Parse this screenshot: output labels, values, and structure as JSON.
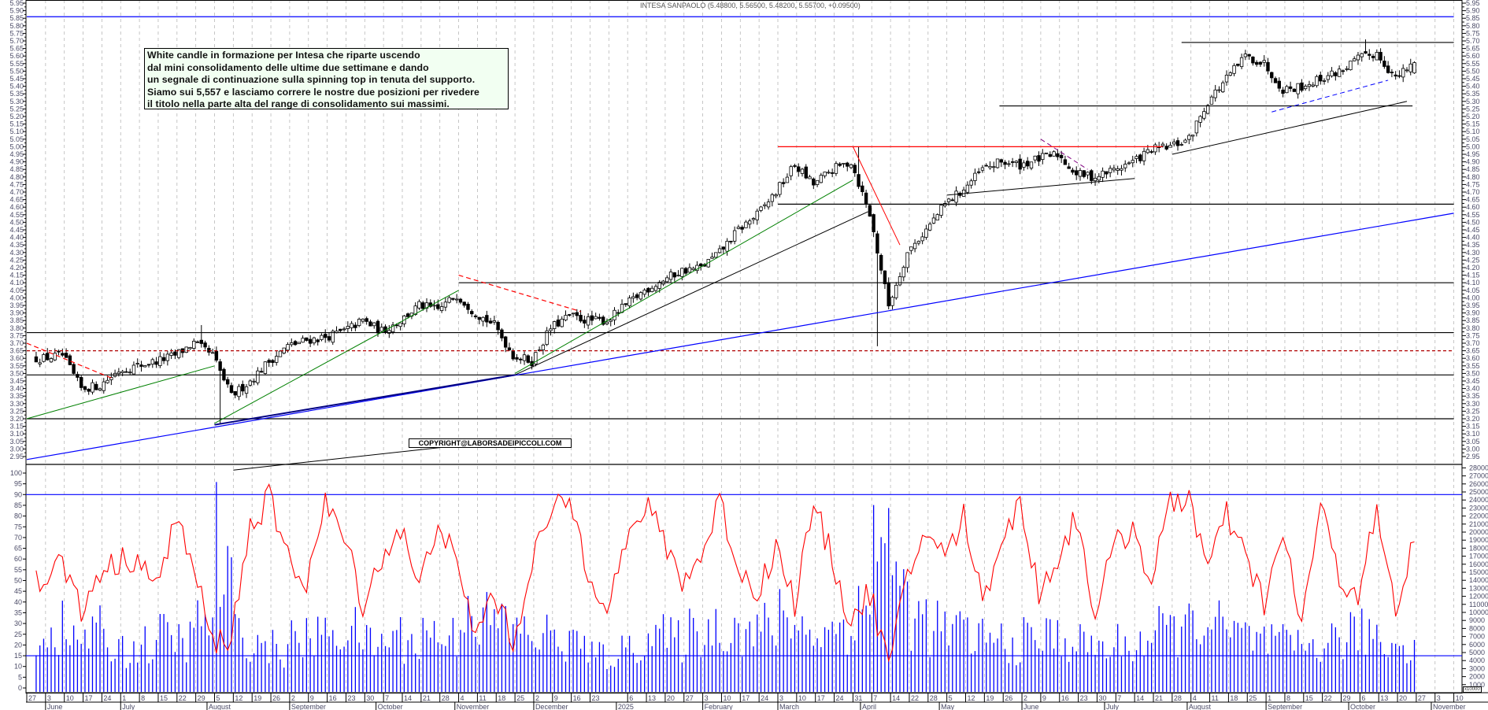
{
  "chart_data": {
    "type": "candlestick",
    "title": "INTESA SANPAOLO (5.48800, 5.56500, 5.48200, 5.55700, +0.09500)",
    "last_candle": {
      "open": 5.488,
      "high": 5.565,
      "low": 5.482,
      "close": 5.557,
      "change": 0.095
    },
    "price_axis": {
      "min": 2.95,
      "max": 5.95,
      "step": 0.05
    },
    "osc_axis": {
      "min": 0,
      "max": 100,
      "step": 5
    },
    "volume_axis": {
      "min": 1000,
      "max": 28000,
      "step": 1000,
      "multiplier_label": "x10000"
    },
    "weekly_close": [
      3.6,
      3.62,
      3.4,
      3.42,
      3.52,
      3.55,
      3.58,
      3.62,
      3.7,
      3.62,
      3.35,
      3.45,
      3.58,
      3.68,
      3.72,
      3.74,
      3.78,
      3.85,
      3.78,
      3.85,
      3.95,
      3.92,
      4.02,
      3.9,
      3.82,
      3.62,
      3.58,
      3.8,
      3.88,
      3.85,
      3.85,
      3.95,
      4.05,
      4.12,
      4.18,
      4.2,
      4.3,
      4.45,
      4.55,
      4.7,
      4.88,
      4.75,
      4.85,
      4.9,
      4.55,
      3.95,
      4.3,
      4.45,
      4.62,
      4.72,
      4.85,
      4.9,
      4.88,
      4.92,
      4.95,
      4.82,
      4.8,
      4.85,
      4.9,
      4.98,
      5.0,
      5.05,
      5.3,
      5.45,
      5.6,
      5.55,
      5.38,
      5.4,
      5.45,
      5.5,
      5.58,
      5.62,
      5.45,
      5.557
    ],
    "price_spikes": [
      {
        "week": 10,
        "low": 3.17
      },
      {
        "week": 9,
        "high": 3.82
      },
      {
        "week": 45,
        "low": 3.68
      },
      {
        "week": 44,
        "high": 5.0
      },
      {
        "week": 71,
        "high": 5.71
      }
    ],
    "oscillator_weekly": [
      50,
      60,
      35,
      55,
      58,
      62,
      45,
      80,
      55,
      20,
      25,
      75,
      88,
      60,
      50,
      85,
      70,
      40,
      60,
      75,
      45,
      80,
      55,
      25,
      45,
      20,
      60,
      80,
      88,
      55,
      40,
      65,
      85,
      70,
      50,
      60,
      88,
      55,
      45,
      65,
      40,
      85,
      60,
      30,
      45,
      10,
      50,
      75,
      60,
      80,
      40,
      70,
      85,
      45,
      60,
      80,
      35,
      65,
      75,
      50,
      85,
      90,
      55,
      80,
      60,
      40,
      70,
      30,
      85,
      50,
      45,
      80,
      35,
      68
    ],
    "volume_weekly": [
      7000,
      8000,
      6500,
      7500,
      6000,
      5500,
      6000,
      7000,
      6500,
      9000,
      14000,
      7000,
      6000,
      5500,
      6500,
      7000,
      8000,
      7500,
      6000,
      7000,
      6500,
      7500,
      7000,
      11000,
      9000,
      8500,
      7500,
      7000,
      6500,
      6000,
      4500,
      5000,
      6500,
      7000,
      6500,
      7500,
      8000,
      8500,
      7500,
      8000,
      9500,
      8000,
      7500,
      8500,
      10000,
      20000,
      13000,
      9000,
      8000,
      7500,
      7000,
      6500,
      6000,
      6500,
      7000,
      6500,
      6000,
      5500,
      6000,
      6500,
      7500,
      8000,
      9500,
      8000,
      7000,
      6500,
      6000,
      5500,
      6000,
      6500,
      7000,
      7500,
      6000,
      6500
    ],
    "horizontal_lines": [
      {
        "price": 5.86,
        "from_week": 0,
        "to_week": 76,
        "color": "#0000ff",
        "dash": false
      },
      {
        "price": 5.69,
        "from_week": 61.5,
        "to_week": 76,
        "color": "#000000",
        "dash": false
      },
      {
        "price": 5.27,
        "from_week": 51.8,
        "to_week": 73.8,
        "color": "#000000",
        "dash": false
      },
      {
        "price": 5.0,
        "from_week": 40,
        "to_week": 60.5,
        "color": "#ff0000",
        "dash": false
      },
      {
        "price": 4.62,
        "from_week": 40,
        "to_week": 76,
        "color": "#000000",
        "dash": false
      },
      {
        "price": 4.1,
        "from_week": 23,
        "to_week": 76,
        "color": "#000000",
        "dash": false
      },
      {
        "price": 3.77,
        "from_week": 0,
        "to_week": 76,
        "color": "#000000",
        "dash": false
      },
      {
        "price": 3.65,
        "from_week": 0,
        "to_week": 76,
        "color": "#b00000",
        "dash": true
      },
      {
        "price": 3.49,
        "from_week": 0,
        "to_week": 76,
        "color": "#000000",
        "dash": false
      },
      {
        "price": 3.2,
        "from_week": 0,
        "to_week": 76,
        "color": "#000000",
        "dash": false
      }
    ],
    "trendlines": [
      {
        "p1": [
          0,
          2.93
        ],
        "p2": [
          76,
          4.56
        ],
        "color": "#0000ff",
        "dash": false,
        "width": 1.2
      },
      {
        "p1": [
          10,
          3.16
        ],
        "p2": [
          26,
          3.49
        ],
        "color": "#000080",
        "dash": false,
        "width": 2
      },
      {
        "p1": [
          26,
          3.49
        ],
        "p2": [
          44.8,
          4.57
        ],
        "color": "#000000",
        "dash": false,
        "width": 1
      },
      {
        "p1": [
          0,
          3.2
        ],
        "p2": [
          10,
          3.55
        ],
        "color": "#008000",
        "dash": false,
        "width": 1
      },
      {
        "p1": [
          10,
          3.17
        ],
        "p2": [
          23,
          4.05
        ],
        "color": "#008000",
        "dash": false,
        "width": 1
      },
      {
        "p1": [
          26,
          3.5
        ],
        "p2": [
          44,
          4.78
        ],
        "color": "#008000",
        "dash": false,
        "width": 1
      },
      {
        "p1": [
          0,
          3.7
        ],
        "p2": [
          4.5,
          3.47
        ],
        "color": "#ff0000",
        "dash": true,
        "width": 1.2
      },
      {
        "p1": [
          23,
          4.15
        ],
        "p2": [
          29.5,
          3.91
        ],
        "color": "#ff0000",
        "dash": true,
        "width": 1.2
      },
      {
        "p1": [
          44,
          5.0
        ],
        "p2": [
          46.5,
          4.35
        ],
        "color": "#ff0000",
        "dash": false,
        "width": 1
      },
      {
        "p1": [
          49,
          4.68
        ],
        "p2": [
          59,
          4.79
        ],
        "color": "#000000",
        "dash": false,
        "width": 1
      },
      {
        "p1": [
          61,
          4.95
        ],
        "p2": [
          73.5,
          5.3
        ],
        "color": "#000000",
        "dash": false,
        "width": 1
      },
      {
        "p1": [
          54,
          5.05
        ],
        "p2": [
          56.5,
          4.85
        ],
        "color": "#800080",
        "dash": true,
        "width": 1
      },
      {
        "p1": [
          66.3,
          5.23
        ],
        "p2": [
          72.5,
          5.44
        ],
        "color": "#0000ff",
        "dash": true,
        "width": 1
      },
      {
        "p1": [
          11,
          2.86
        ],
        "p2": [
          22.05,
          3.01
        ],
        "color": "#000000",
        "dash": false,
        "width": 1
      }
    ],
    "osc_lines": [
      {
        "value": 90,
        "color": "#0000ff"
      },
      {
        "value": 15,
        "color": "#0000ff"
      }
    ],
    "day_labels": [
      [
        "27",
        0
      ],
      [
        "3",
        1
      ],
      [
        "10",
        2
      ],
      [
        "17",
        3
      ],
      [
        "24",
        4
      ],
      [
        "1",
        5
      ],
      [
        "8",
        6
      ],
      [
        "15",
        7
      ],
      [
        "22",
        8
      ],
      [
        "29",
        9
      ],
      [
        "5",
        10
      ],
      [
        "12",
        11
      ],
      [
        "19",
        12
      ],
      [
        "26",
        13
      ],
      [
        "2",
        14
      ],
      [
        "9",
        15
      ],
      [
        "16",
        16
      ],
      [
        "23",
        17
      ],
      [
        "30",
        18
      ],
      [
        "7",
        19
      ],
      [
        "14",
        20
      ],
      [
        "21",
        21
      ],
      [
        "28",
        22
      ],
      [
        "4",
        23
      ],
      [
        "11",
        24
      ],
      [
        "18",
        25
      ],
      [
        "25",
        26
      ],
      [
        "2",
        27
      ],
      [
        "9",
        28
      ],
      [
        "16",
        29
      ],
      [
        "23",
        30
      ],
      [
        "6",
        32
      ],
      [
        "13",
        33
      ],
      [
        "20",
        34
      ],
      [
        "27",
        35
      ],
      [
        "3",
        36
      ],
      [
        "10",
        37
      ],
      [
        "17",
        38
      ],
      [
        "24",
        39
      ],
      [
        "3",
        40
      ],
      [
        "10",
        41
      ],
      [
        "17",
        42
      ],
      [
        "24",
        43
      ],
      [
        "31",
        44
      ],
      [
        "7",
        45
      ],
      [
        "14",
        46
      ],
      [
        "22",
        47
      ],
      [
        "28",
        48
      ],
      [
        "5",
        49
      ],
      [
        "12",
        50
      ],
      [
        "19",
        51
      ],
      [
        "26",
        52
      ],
      [
        "2",
        53
      ],
      [
        "9",
        54
      ],
      [
        "16",
        55
      ],
      [
        "23",
        56
      ],
      [
        "30",
        57
      ],
      [
        "7",
        58
      ],
      [
        "14",
        59
      ],
      [
        "21",
        60
      ],
      [
        "28",
        61
      ],
      [
        "4",
        62
      ],
      [
        "11",
        63
      ],
      [
        "18",
        64
      ],
      [
        "25",
        65
      ],
      [
        "1",
        66
      ],
      [
        "8",
        67
      ],
      [
        "15",
        68
      ],
      [
        "22",
        69
      ],
      [
        "29",
        70
      ],
      [
        "6",
        71
      ],
      [
        "13",
        72
      ],
      [
        "20",
        73
      ],
      [
        "27",
        74
      ],
      [
        "3",
        75
      ],
      [
        "10",
        76
      ]
    ],
    "month_labels": [
      [
        "June",
        1
      ],
      [
        "July",
        5
      ],
      [
        "August",
        9.6
      ],
      [
        "September",
        14
      ],
      [
        "October",
        18.6
      ],
      [
        "November",
        22.8
      ],
      [
        "December",
        27
      ],
      [
        "2025",
        31.4
      ],
      [
        "February",
        36
      ],
      [
        "March",
        40
      ],
      [
        "April",
        44.4
      ],
      [
        "May",
        48.6
      ],
      [
        "June",
        53
      ],
      [
        "July",
        57.4
      ],
      [
        "August",
        61.8
      ],
      [
        "September",
        66
      ],
      [
        "October",
        70.4
      ],
      [
        "November",
        74.8
      ]
    ]
  },
  "annotation": {
    "lines": [
      "White candle in formazione per Intesa che riparte uscendo",
      "dal mini consolidamento delle ultime due settimane e dando",
      "un segnale di continuazione sulla spinning top in tenuta del supporto.",
      "Siamo sui 5,557 e lasciamo correre le nostre due posizioni per rivedere",
      "il titolo nella parte alta del range di consolidamento sui massimi."
    ]
  },
  "copyright": "COPYRIGHT@LABORSADEIPICCOLI.COM",
  "colors": {
    "up_fill": "#ffffff",
    "down_fill": "#000000",
    "oscillator": "#ff0000",
    "volume": "#0000ff",
    "grid": "#b8b8b8",
    "axis_text": "#4a4a66"
  }
}
